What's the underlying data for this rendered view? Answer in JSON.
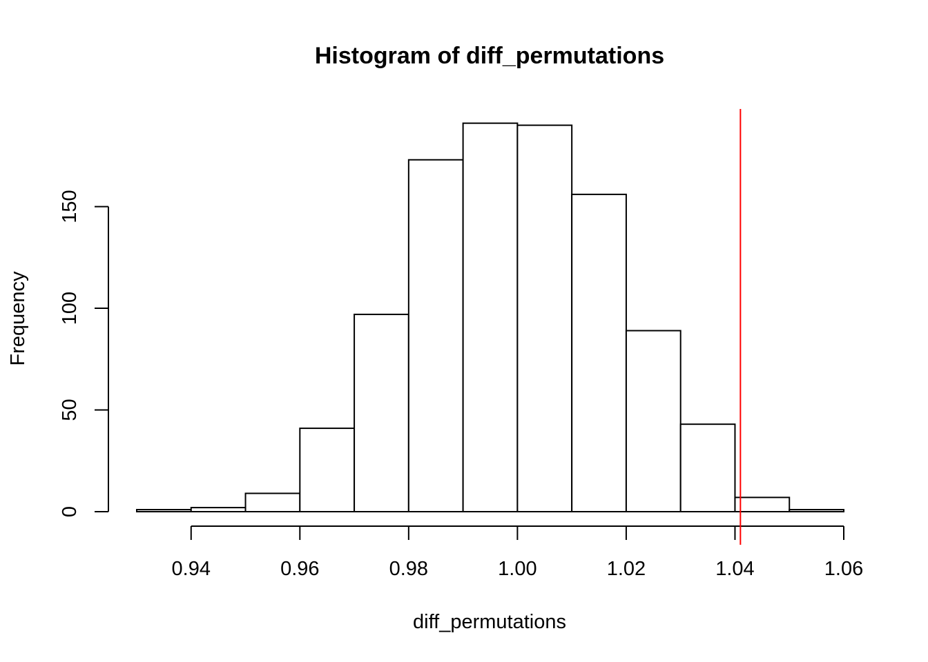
{
  "chart_data": {
    "type": "bar",
    "title": "Histogram of diff_permutations",
    "xlabel": "diff_permutations",
    "ylabel": "Frequency",
    "bins": [
      {
        "from": 0.93,
        "to": 0.94,
        "count": 1
      },
      {
        "from": 0.94,
        "to": 0.95,
        "count": 2
      },
      {
        "from": 0.95,
        "to": 0.96,
        "count": 9
      },
      {
        "from": 0.96,
        "to": 0.97,
        "count": 41
      },
      {
        "from": 0.97,
        "to": 0.98,
        "count": 97
      },
      {
        "from": 0.98,
        "to": 0.99,
        "count": 173
      },
      {
        "from": 0.99,
        "to": 1.0,
        "count": 191
      },
      {
        "from": 1.0,
        "to": 1.01,
        "count": 190
      },
      {
        "from": 1.01,
        "to": 1.02,
        "count": 156
      },
      {
        "from": 1.02,
        "to": 1.03,
        "count": 89
      },
      {
        "from": 1.03,
        "to": 1.04,
        "count": 43
      },
      {
        "from": 1.04,
        "to": 1.05,
        "count": 7
      },
      {
        "from": 1.05,
        "to": 1.06,
        "count": 1
      }
    ],
    "xlim": [
      0.93,
      1.06
    ],
    "ylim": [
      0,
      198
    ],
    "x_ticks": [
      0.94,
      0.96,
      0.98,
      1.0,
      1.02,
      1.04,
      1.06
    ],
    "x_tick_labels": [
      "0.94",
      "0.96",
      "0.98",
      "1.00",
      "1.02",
      "1.04",
      "1.06"
    ],
    "y_ticks": [
      0,
      50,
      100,
      150
    ],
    "y_tick_labels": [
      "0",
      "50",
      "100",
      "150"
    ],
    "reference_line": {
      "x": 1.041,
      "color": "#ff0000"
    },
    "grid": false,
    "bar_fill": "#ffffff",
    "bar_stroke": "#000000"
  }
}
